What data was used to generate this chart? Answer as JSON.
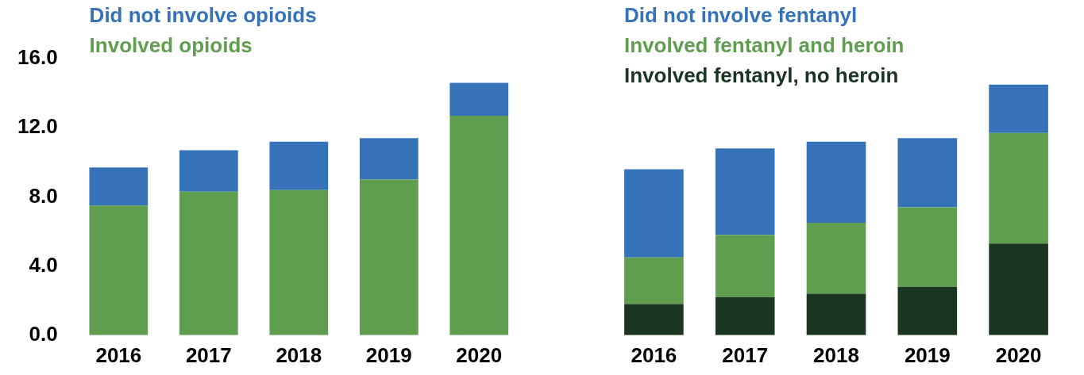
{
  "chart_data": [
    {
      "type": "bar",
      "stacked": true,
      "categories": [
        "2016",
        "2017",
        "2018",
        "2019",
        "2020"
      ],
      "ylim": [
        0,
        16
      ],
      "yticks": [
        {
          "value": 0,
          "label": "0.0"
        },
        {
          "value": 4,
          "label": "4.0"
        },
        {
          "value": 8,
          "label": "8.0"
        },
        {
          "value": 12,
          "label": "12.0"
        },
        {
          "value": 16,
          "label": "16.0"
        }
      ],
      "legend": "top left",
      "series": [
        {
          "name": "Involved opioids",
          "color": "#5f9e4f",
          "values": [
            7.5,
            8.3,
            8.4,
            9.0,
            12.7
          ]
        },
        {
          "name": "Did not involve opioids",
          "color": "#3572b8",
          "values": [
            2.2,
            2.4,
            2.8,
            2.4,
            1.9
          ]
        }
      ]
    },
    {
      "type": "bar",
      "stacked": true,
      "categories": [
        "2016",
        "2017",
        "2018",
        "2019",
        "2020"
      ],
      "ylim": [
        0,
        16
      ],
      "tick_labels": "x",
      "legend": "top left",
      "series": [
        {
          "name": "Involved fentanyl, no heroin",
          "color": "#1a3520",
          "values": [
            1.8,
            2.2,
            2.4,
            2.8,
            5.3
          ]
        },
        {
          "name": "Involved fentanyl and heroin",
          "color": "#5f9e4f",
          "values": [
            2.7,
            3.6,
            4.1,
            4.6,
            6.4
          ]
        },
        {
          "name": "Did not involve fentanyl",
          "color": "#3572b8",
          "values": [
            5.1,
            5.0,
            4.7,
            4.0,
            2.8
          ]
        }
      ]
    }
  ]
}
